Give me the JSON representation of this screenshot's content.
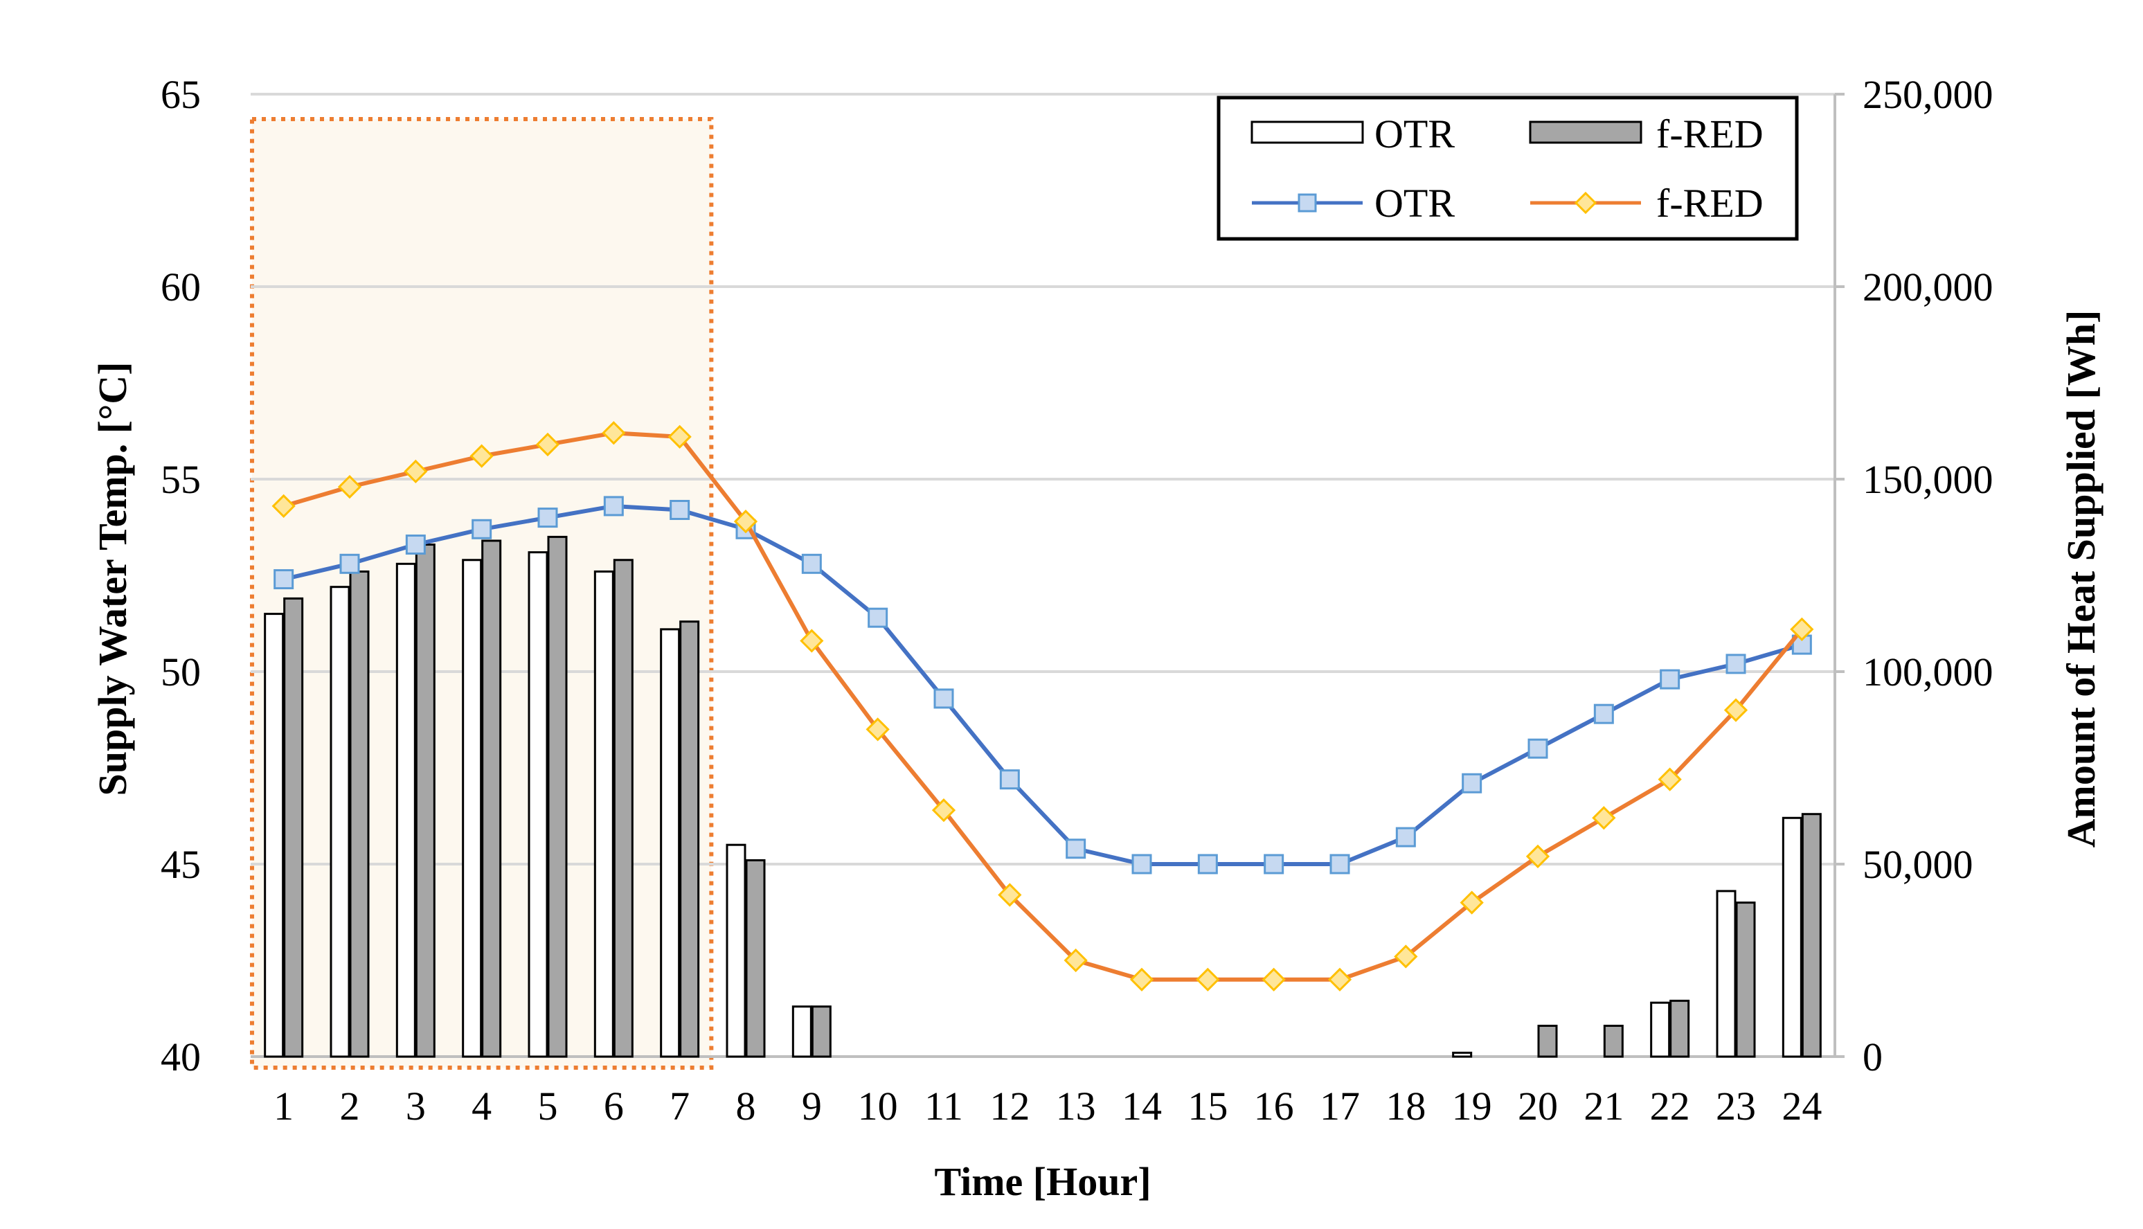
{
  "chart_data": {
    "type": "bar+line (dual axis)",
    "xlabel": "Time [Hour]",
    "ylabel_left": "Supply Water Temp. [°C]",
    "ylabel_right": "Amount of Heat Supplied [Wh]",
    "categories": [
      "1",
      "2",
      "3",
      "4",
      "5",
      "6",
      "7",
      "8",
      "9",
      "10",
      "11",
      "12",
      "13",
      "14",
      "15",
      "16",
      "17",
      "18",
      "19",
      "20",
      "21",
      "22",
      "23",
      "24"
    ],
    "y_left": {
      "min": 40,
      "max": 65,
      "step": 5,
      "ticks": [
        "40",
        "45",
        "50",
        "55",
        "60",
        "65"
      ]
    },
    "y_right": {
      "min": 0,
      "max": 250000,
      "step": 50000,
      "ticks": [
        "0",
        "50,000",
        "100,000",
        "150,000",
        "200,000",
        "250,000"
      ]
    },
    "grid": "horizontal",
    "highlight_region": {
      "from_hour": 1,
      "to_hour": 7,
      "style": "dotted orange border, light beige fill"
    },
    "bar_series": [
      {
        "name": "OTR",
        "color": "#ffffff",
        "stroke": "#000000",
        "values": [
          115000,
          122000,
          128000,
          129000,
          131000,
          126000,
          111000,
          55000,
          13000,
          0,
          0,
          0,
          0,
          0,
          0,
          0,
          0,
          0,
          1000,
          0,
          0,
          14000,
          43000,
          62000
        ]
      },
      {
        "name": "f-RED",
        "color": "#a6a6a6",
        "stroke": "#000000",
        "values": [
          119000,
          126000,
          133000,
          134000,
          135000,
          129000,
          113000,
          51000,
          13000,
          0,
          0,
          0,
          0,
          0,
          0,
          0,
          0,
          0,
          0,
          8000,
          8000,
          14500,
          40000,
          63000
        ]
      }
    ],
    "line_series": [
      {
        "name": "OTR",
        "color": "#4472c4",
        "marker": "square",
        "marker_fill": "#c6d9f1",
        "marker_stroke": "#5b9bd5",
        "values": [
          52.4,
          52.8,
          53.3,
          53.7,
          54.0,
          54.3,
          54.2,
          53.7,
          52.8,
          51.4,
          49.3,
          47.2,
          45.4,
          45.0,
          45.0,
          45.0,
          45.0,
          45.7,
          47.1,
          48.0,
          48.9,
          49.8,
          50.2,
          50.7
        ]
      },
      {
        "name": "f-RED",
        "color": "#ed7d31",
        "marker": "diamond",
        "marker_fill": "#ffe699",
        "marker_stroke": "#ffc000",
        "values": [
          54.3,
          54.8,
          55.2,
          55.6,
          55.9,
          56.2,
          56.1,
          53.9,
          50.8,
          48.5,
          46.4,
          44.2,
          42.5,
          42.0,
          42.0,
          42.0,
          42.0,
          42.6,
          44.0,
          45.2,
          46.2,
          47.2,
          49.0,
          51.1
        ]
      }
    ],
    "legend": {
      "position": "top-right",
      "entries": [
        {
          "label": "OTR",
          "kind": "bar",
          "series": "OTR"
        },
        {
          "label": "f-RED",
          "kind": "bar",
          "series": "f-RED"
        },
        {
          "label": "OTR",
          "kind": "line",
          "series": "OTR"
        },
        {
          "label": "f-RED",
          "kind": "line",
          "series": "f-RED"
        }
      ]
    }
  }
}
